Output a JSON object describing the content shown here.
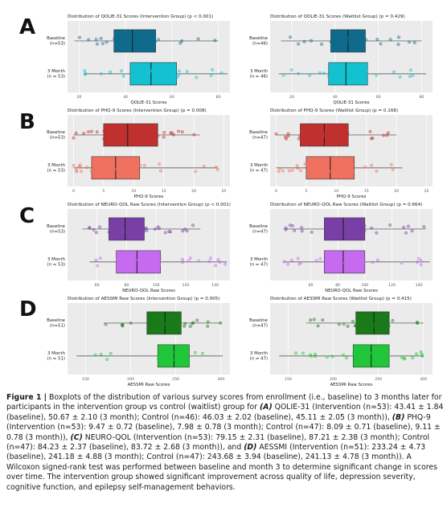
{
  "panel_letters": [
    "A",
    "B",
    "C",
    "D"
  ],
  "chart_data": [
    {
      "type": "boxplot",
      "panel": "A",
      "title": "Distribution of QOLIE-31 Scores (Intervention Group) (p < 0.001)",
      "xlabel": "QOLIE-31 Scores",
      "xlim": [
        15,
        85
      ],
      "ticks": [
        20,
        40,
        60,
        80
      ],
      "tick_labels": [
        "20",
        "40",
        "60",
        "80"
      ],
      "colors": [
        "#0f6b8c",
        "#13c1d0"
      ],
      "groups": [
        {
          "label": "Baseline\n(n=53)",
          "min": 18,
          "q1": 35,
          "median": 43,
          "q3": 53,
          "max": 80
        },
        {
          "label": "3 Month\n(n = 53)",
          "min": 22,
          "q1": 42,
          "median": 51,
          "q3": 62,
          "max": 84
        }
      ]
    },
    {
      "type": "boxplot",
      "panel": "A",
      "title": "Distribution of QOLIE-31 Scores (Waitlist Group) (p = 0.429)",
      "xlabel": "QOLIE-31 Scores",
      "xlim": [
        10,
        85
      ],
      "ticks": [
        20,
        40,
        60,
        80
      ],
      "tick_labels": [
        "20",
        "40",
        "60",
        "80"
      ],
      "colors": [
        "#0f6b8c",
        "#13c1d0"
      ],
      "groups": [
        {
          "label": "Baseline\n(n=46)",
          "min": 15,
          "q1": 38,
          "median": 46,
          "q3": 54,
          "max": 80
        },
        {
          "label": "3 Month\n(n = 46)",
          "min": 14,
          "q1": 37,
          "median": 45,
          "q3": 55,
          "max": 82
        }
      ]
    },
    {
      "type": "boxplot",
      "panel": "B",
      "title": "Distribution of PHQ-9 Scores (Intervention Group) (p = 0.008)",
      "xlabel": "PHQ-9 Scores",
      "xlim": [
        -1,
        26
      ],
      "ticks": [
        0,
        5,
        10,
        15,
        20,
        25
      ],
      "tick_labels": [
        "0",
        "5",
        "10",
        "15",
        "20",
        "25"
      ],
      "colors": [
        "#c0302f",
        "#f0715f"
      ],
      "groups": [
        {
          "label": "Baseline\n(n=53)",
          "min": 0,
          "q1": 5,
          "median": 9,
          "q3": 14,
          "max": 21
        },
        {
          "label": "3 Month\n(n = 53)",
          "min": 0,
          "q1": 3,
          "median": 7,
          "q3": 11,
          "max": 24
        }
      ]
    },
    {
      "type": "boxplot",
      "panel": "B",
      "title": "Distribution of PHQ-9 Scores (Waitlist Group) (p = 0.168)",
      "xlabel": "PHQ-9 Scores",
      "xlim": [
        -1,
        26
      ],
      "ticks": [
        0,
        5,
        10,
        15,
        20,
        25
      ],
      "tick_labels": [
        "0",
        "5",
        "10",
        "15",
        "20",
        "25"
      ],
      "colors": [
        "#c0302f",
        "#f0715f"
      ],
      "groups": [
        {
          "label": "Baseline\n(n=47)",
          "min": 0,
          "q1": 4,
          "median": 8,
          "q3": 12,
          "max": 20
        },
        {
          "label": "3 Month\n(n = 47)",
          "min": 0,
          "q1": 5,
          "median": 9,
          "q3": 13,
          "max": 21
        }
      ]
    },
    {
      "type": "boxplot",
      "panel": "C",
      "title": "Distribution of NEURO-QOL Raw Scores (Intervention Group) (p < 0.001)",
      "xlabel": "NEURO-QOL Raw Scores",
      "xlim": [
        40,
        150
      ],
      "ticks": [
        60,
        80,
        100,
        120,
        140
      ],
      "tick_labels": [
        "60",
        "80",
        "100",
        "120",
        "140"
      ],
      "colors": [
        "#7a3fa6",
        "#c66bf0"
      ],
      "groups": [
        {
          "label": "Baseline\n(n=53)",
          "min": 50,
          "q1": 68,
          "median": 79,
          "q3": 92,
          "max": 130
        },
        {
          "label": "3 Month\n(n = 53)",
          "min": 55,
          "q1": 73,
          "median": 87,
          "q3": 103,
          "max": 148
        }
      ]
    },
    {
      "type": "boxplot",
      "panel": "C",
      "title": "Distribution of NEURO-QOL Raw Scores (Waitlist Group) (p = 0.664)",
      "xlabel": "NEURO-QOL Raw Scores",
      "xlim": [
        30,
        150
      ],
      "ticks": [
        60,
        80,
        100,
        120,
        140
      ],
      "tick_labels": [
        "60",
        "80",
        "100",
        "120",
        "140"
      ],
      "colors": [
        "#7a3fa6",
        "#c66bf0"
      ],
      "groups": [
        {
          "label": "Baseline\n(n=47)",
          "min": 40,
          "q1": 70,
          "median": 84,
          "q3": 100,
          "max": 145
        },
        {
          "label": "3 Month\n(n = 47)",
          "min": 40,
          "q1": 70,
          "median": 84,
          "q3": 100,
          "max": 148
        }
      ]
    },
    {
      "type": "boxplot",
      "panel": "D",
      "title": "Distribution of AESSMI Raw Scores (Intervention Group) (p = 0.005)",
      "xlabel": "AESSMI Raw Scores",
      "xlim": [
        130,
        310
      ],
      "ticks": [
        150,
        200,
        250,
        300
      ],
      "tick_labels": [
        "150",
        "200",
        "250",
        "300"
      ],
      "colors": [
        "#1a7a1a",
        "#21c73a"
      ],
      "groups": [
        {
          "label": "Baseline\n(n=51)",
          "min": 170,
          "q1": 218,
          "median": 238,
          "q3": 256,
          "max": 300
        },
        {
          "label": "3 Month\n(n = 51)",
          "min": 140,
          "q1": 230,
          "median": 248,
          "q3": 265,
          "max": 302
        }
      ]
    },
    {
      "type": "boxplot",
      "panel": "D",
      "title": "Distribution of AESSMI Raw Scores (Waitlist Group) (p = 0.415)",
      "xlabel": "AESSMI Raw Scores",
      "xlim": [
        130,
        310
      ],
      "ticks": [
        150,
        200,
        250,
        300
      ],
      "tick_labels": [
        "150",
        "200",
        "250",
        "300"
      ],
      "colors": [
        "#1a7a1a",
        "#21c73a"
      ],
      "groups": [
        {
          "label": "Baseline\n(n=47)",
          "min": 170,
          "q1": 225,
          "median": 245,
          "q3": 262,
          "max": 300
        },
        {
          "label": "3 Month\n(n = 47)",
          "min": 140,
          "q1": 222,
          "median": 242,
          "q3": 262,
          "max": 300
        }
      ]
    }
  ],
  "caption": {
    "figure_label": "Figure 1 |",
    "intro": " Boxplots of the distribution of various survey scores from enrollment (i.e., baseline) to 3 months later for participants in the intervention group vs control (waitlist) group for ",
    "a_label": "(A)",
    "a_text": " QOLIE-31 (Intervention (n=53): 43.41 ± 1.84 (baseline),  50.67 ± 2.10 (3 month); Control (n=46): 46.03 ± 2.02 (baseline), 45.11 ± 2.05 (3 month)), ",
    "b_label": "(B)",
    "b_text": " PHQ-9 (Intervention (n=53): 9.47 ± 0.72 (baseline), 7.98 ± 0.78 (3 month); Control (n=47): 8.09 ± 0.71 (baseline), 9.11 ± 0.78 (3 month)), ",
    "c_label": "(C)",
    "c_text": " NEURO-QOL (Intervention (n=53): 79.15 ± 2.31 (baseline), 87.21 ± 2.38 (3 month); Control (n=47): 84.23 ± 2.37 (baseline), 83.72 ± 2.68 (3 month)), and ",
    "d_label": "(D)",
    "d_text": " AESSMI (Intervention (n=51): 233.24 ± 4.73 (baseline), 241.18 ± 4.88 (3 month); Control (n=47): 243.68 ± 3.94 (baseline), 241.13 ± 4.78 (3 month)). A Wilcoxon signed-rank test was performed between baseline and month 3 to determine significant change in scores over time. The intervention group showed significant improvement across quality of life, depression severity, cognitive function, and epilepsy self-management behaviors."
  }
}
